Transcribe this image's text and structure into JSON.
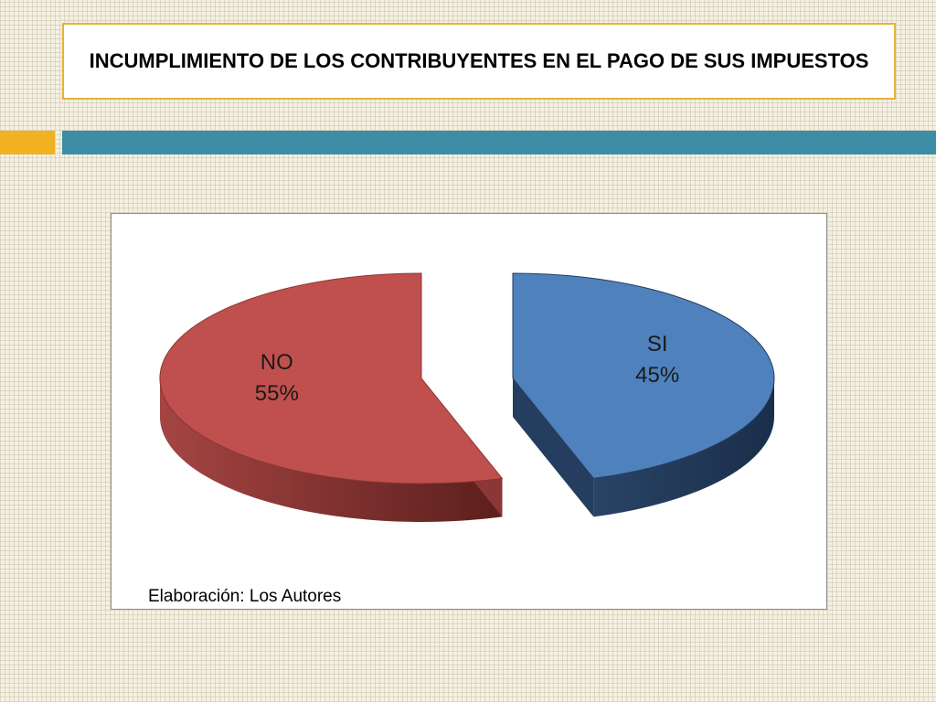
{
  "slide": {
    "title": "INCUMPLIMIENTO DE LOS CONTRIBUYENTES EN EL PAGO DE SUS IMPUESTOS",
    "source_note": "Elaboración: Los Autores",
    "colors": {
      "title_border": "#e8b23a",
      "accent_orange": "#f1b120",
      "accent_teal": "#3d8da6"
    }
  },
  "chart_data": {
    "type": "pie",
    "style": "3d-exploded",
    "categories": [
      "NO",
      "SI"
    ],
    "values": [
      55,
      45
    ],
    "labels": [
      "55%",
      "45%"
    ],
    "colors": [
      "#c0504d",
      "#4f81bd"
    ],
    "legend": "none"
  }
}
